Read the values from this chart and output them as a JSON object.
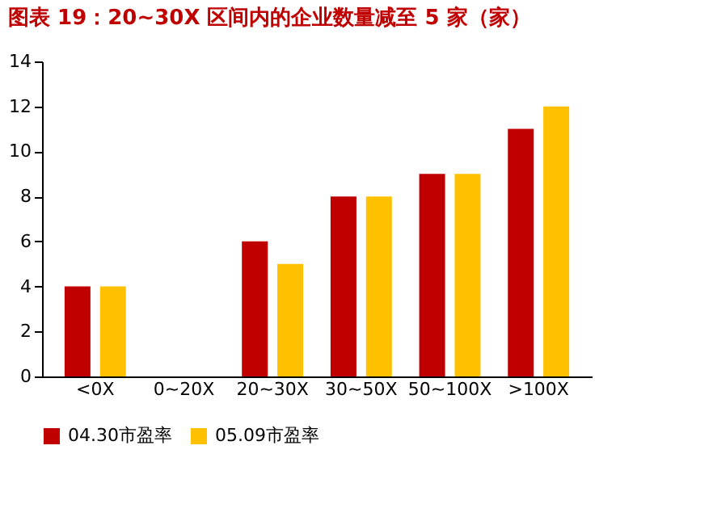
{
  "chart_data": {
    "type": "bar",
    "title": "图表 19：20~30X 区间内的企业数量减至 5 家（家）",
    "categories": [
      "<0X",
      "0~20X",
      "20~30X",
      "30~50X",
      "50~100X",
      ">100X"
    ],
    "series": [
      {
        "name": "04.30市盈率",
        "color": "#c00000",
        "values": [
          4,
          0,
          6,
          8,
          9,
          11
        ]
      },
      {
        "name": "05.09市盈率",
        "color": "#ffc000",
        "values": [
          4,
          0,
          5,
          8,
          9,
          12
        ]
      }
    ],
    "ylim": [
      0,
      14
    ],
    "yticks": [
      0,
      2,
      4,
      6,
      8,
      10,
      12,
      14
    ],
    "grid": false,
    "legend": "bottom"
  }
}
